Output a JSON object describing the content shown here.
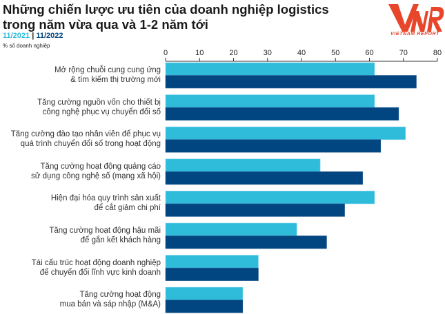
{
  "title_lines": [
    "Những chiến lược ưu tiên của doanh nghiệp logistics",
    "trong năm vừa qua và 1-2 năm tới"
  ],
  "logo_text": "VIETNAM REPORT",
  "logo_mark": "VNR",
  "colors": {
    "series_2021": "#2fbcdb",
    "series_2022": "#014680",
    "logo": "#e8462b"
  },
  "chart_data": {
    "type": "bar",
    "orientation": "horizontal",
    "unit_label": "% số doanh nghiệp",
    "xlim": [
      0,
      80
    ],
    "ticks": [
      0,
      10,
      20,
      30,
      40,
      50,
      60,
      70,
      80
    ],
    "axis_position": "top",
    "grid": false,
    "legend_placement": "top-left",
    "categories": [
      [
        "Mở rộng chuỗi cung cung ứng",
        "& tìm kiếm thị trường mới"
      ],
      [
        "Tăng cường nguồn vốn cho thiết bị",
        "công nghệ phục vụ chuyển đổi số"
      ],
      [
        "Tăng cường đào tạo nhân viên để phục vụ",
        "quá trình chuyển đổi số trong hoạt động"
      ],
      [
        "Tăng cường hoạt động quảng cáo",
        "sử dụng công nghệ số (mạng xã hội)"
      ],
      [
        "Hiện đại hóa quy trình sản xuất",
        "để cắt giảm chi phí"
      ],
      [
        "Tăng cường hoạt động hậu mãi",
        "để gắn kết khách hàng"
      ],
      [
        "Tái cấu trúc hoạt động doanh nghiệp",
        "để chuyển đổi lĩnh vực kinh doanh"
      ],
      [
        "Tăng cường hoạt động",
        "mua bán và sáp nhập (M&A)"
      ]
    ],
    "series": [
      {
        "name": "11/2021",
        "values": [
          61.5,
          61.5,
          70.6,
          45.5,
          61.5,
          38.6,
          27.3,
          22.7
        ]
      },
      {
        "name": "11/2022",
        "values": [
          73.8,
          68.6,
          63.3,
          58.0,
          52.7,
          47.4,
          27.3,
          22.7
        ]
      }
    ]
  }
}
